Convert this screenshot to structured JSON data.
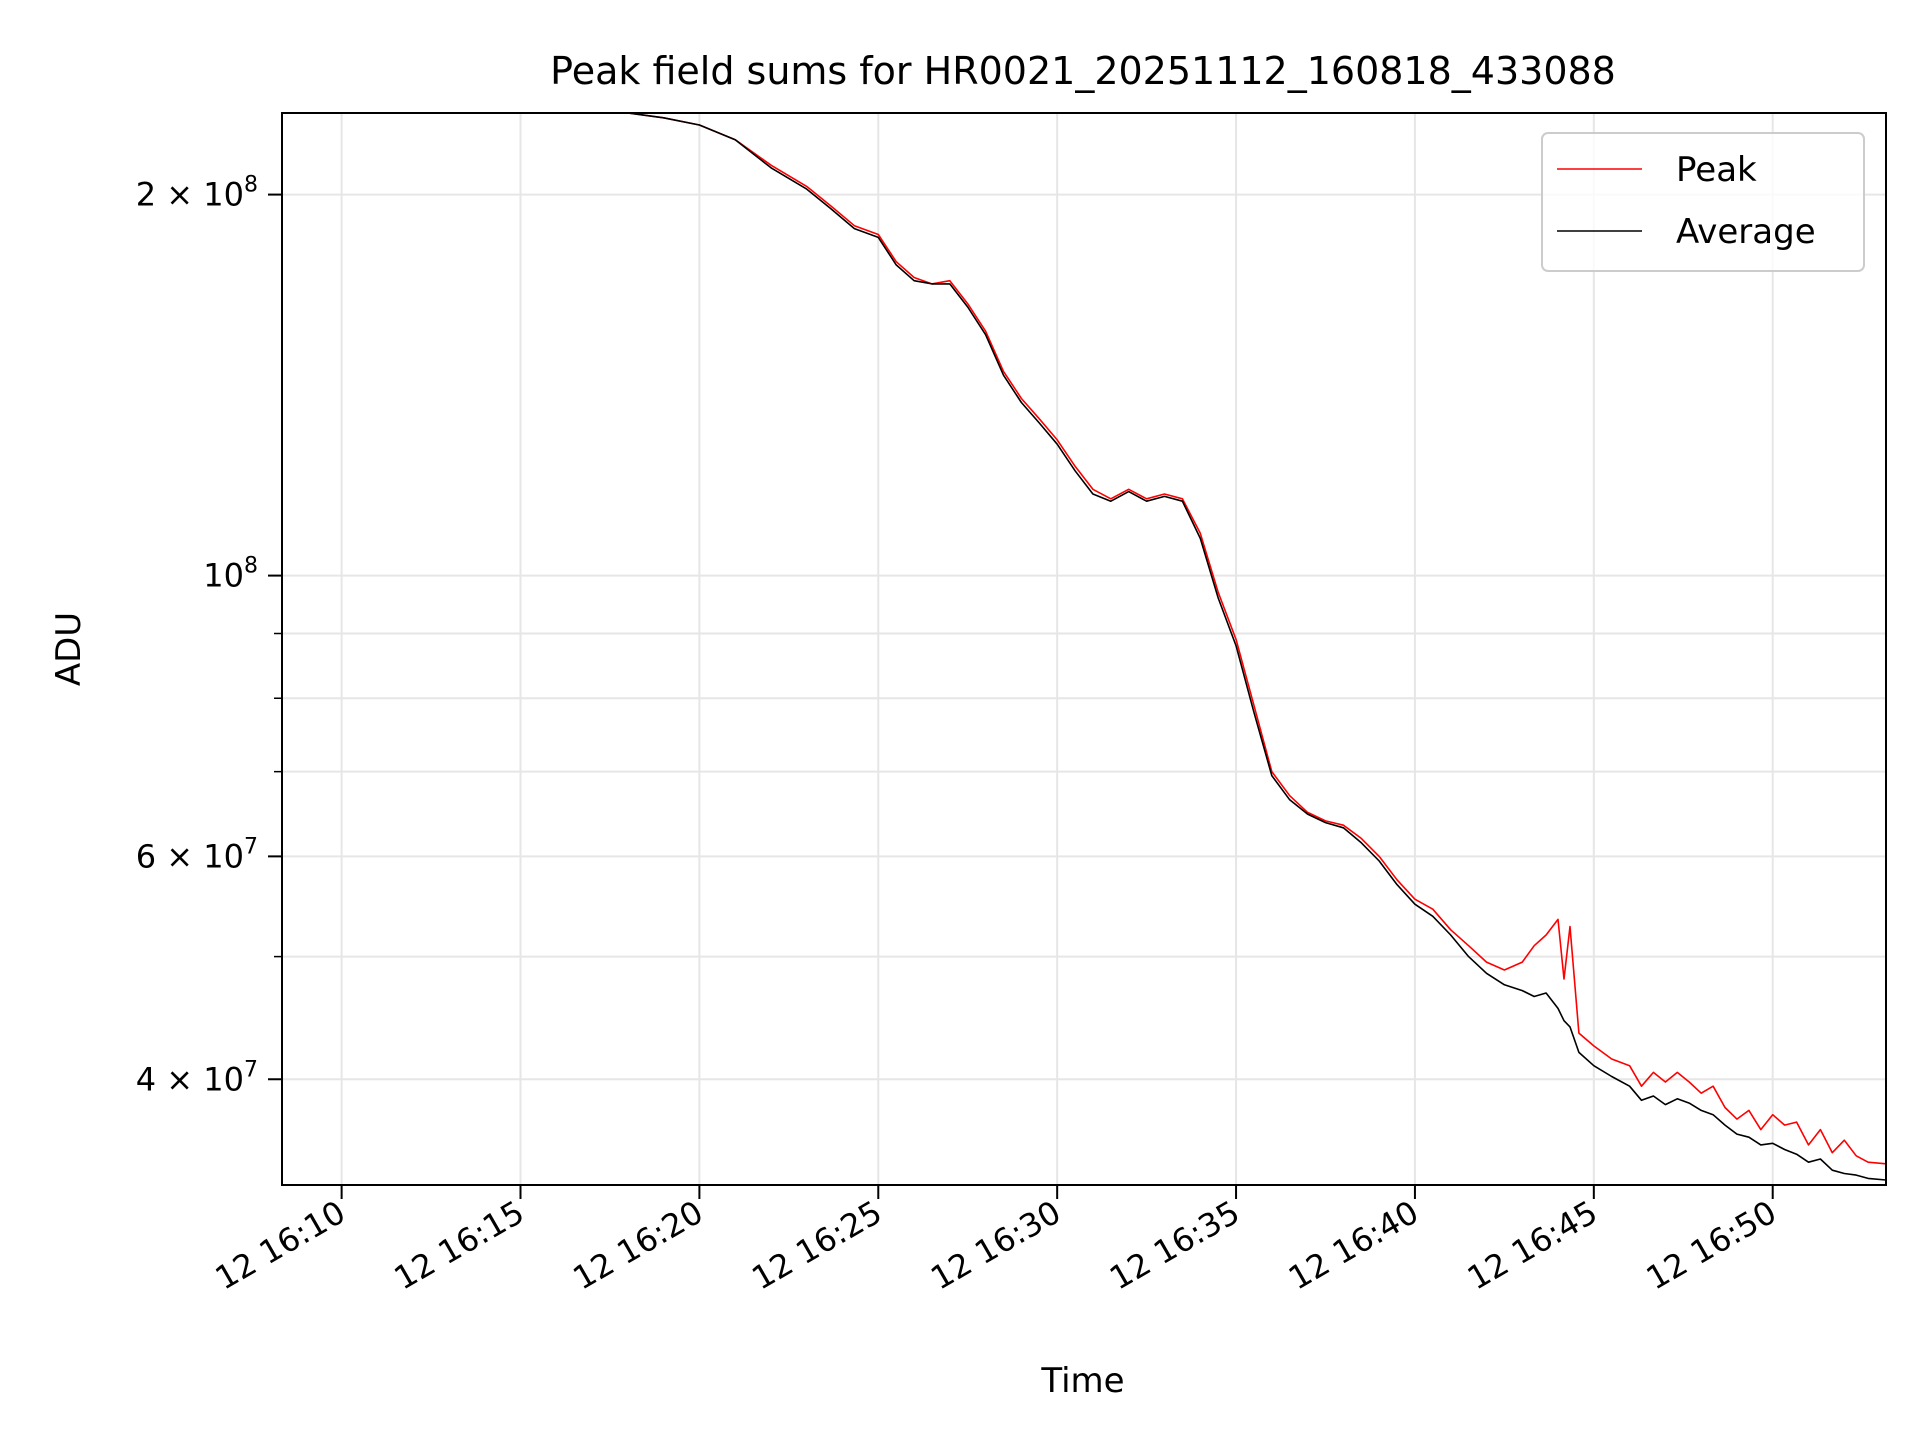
{
  "chart_data": {
    "type": "line",
    "title": "Peak field sums for HR0021_20251112_160818_433088",
    "xlabel": "Time",
    "ylabel": "ADU",
    "yscale": "log",
    "grid": true,
    "legend_position": "top-right",
    "xlim": [
      "12 16:08:20",
      "12 16:53:10"
    ],
    "ylim": [
      33000000,
      232000000
    ],
    "x_ticks": [
      "12 16:10",
      "12 16:15",
      "12 16:20",
      "12 16:25",
      "12 16:30",
      "12 16:35",
      "12 16:40",
      "12 16:45",
      "12 16:50"
    ],
    "x_tick_times": [
      "16:10",
      "16:15",
      "16:20",
      "16:25",
      "16:30",
      "16:35",
      "16:40",
      "16:45",
      "16:50"
    ],
    "y_ticks_major": [
      {
        "value": 200000000,
        "mantissa": "2",
        "exponent": "8"
      },
      {
        "value": 100000000,
        "mantissa": "",
        "exponent": "8"
      },
      {
        "value": 60000000,
        "mantissa": "6",
        "exponent": "7"
      },
      {
        "value": 40000000,
        "mantissa": "4",
        "exponent": "7"
      }
    ],
    "y_ticks_minor": [
      90000000,
      80000000,
      70000000,
      50000000
    ],
    "series": [
      {
        "name": "Peak",
        "color": "#ff0000",
        "points": [
          [
            "16:12:00",
            234000000
          ],
          [
            "16:18:00",
            232000000
          ],
          [
            "16:19:00",
            230000000
          ],
          [
            "16:20:00",
            227000000
          ],
          [
            "16:21:00",
            221000000
          ],
          [
            "16:22:00",
            211000000
          ],
          [
            "16:23:00",
            203000000
          ],
          [
            "16:23:40",
            196000000
          ],
          [
            "16:24:20",
            189000000
          ],
          [
            "16:25:00",
            186000000
          ],
          [
            "16:25:30",
            177000000
          ],
          [
            "16:26:00",
            172000000
          ],
          [
            "16:26:30",
            170000000
          ],
          [
            "16:27:00",
            171000000
          ],
          [
            "16:27:30",
            164000000
          ],
          [
            "16:28:00",
            156000000
          ],
          [
            "16:28:30",
            145000000
          ],
          [
            "16:29:00",
            138000000
          ],
          [
            "16:29:30",
            133000000
          ],
          [
            "16:30:00",
            128000000
          ],
          [
            "16:30:30",
            122000000
          ],
          [
            "16:31:00",
            117000000
          ],
          [
            "16:31:30",
            115000000
          ],
          [
            "16:32:00",
            117000000
          ],
          [
            "16:32:30",
            115000000
          ],
          [
            "16:33:00",
            116000000
          ],
          [
            "16:33:30",
            115000000
          ],
          [
            "16:34:00",
            108000000
          ],
          [
            "16:34:30",
            97000000
          ],
          [
            "16:35:00",
            89000000
          ],
          [
            "16:35:30",
            79000000
          ],
          [
            "16:36:00",
            70000000
          ],
          [
            "16:36:30",
            67000000
          ],
          [
            "16:37:00",
            65000000
          ],
          [
            "16:37:30",
            64000000
          ],
          [
            "16:38:00",
            63500000
          ],
          [
            "16:38:30",
            62000000
          ],
          [
            "16:39:00",
            60000000
          ],
          [
            "16:39:30",
            57500000
          ],
          [
            "16:40:00",
            55500000
          ],
          [
            "16:40:30",
            54500000
          ],
          [
            "16:41:00",
            52500000
          ],
          [
            "16:41:30",
            51000000
          ],
          [
            "16:42:00",
            49500000
          ],
          [
            "16:42:30",
            48800000
          ],
          [
            "16:43:00",
            49500000
          ],
          [
            "16:43:20",
            51000000
          ],
          [
            "16:43:40",
            52000000
          ],
          [
            "16:44:00",
            53500000
          ],
          [
            "16:44:10",
            48000000
          ],
          [
            "16:44:20",
            52800000
          ],
          [
            "16:44:35",
            43500000
          ],
          [
            "16:45:00",
            42500000
          ],
          [
            "16:45:30",
            41500000
          ],
          [
            "16:46:00",
            41000000
          ],
          [
            "16:46:20",
            39500000
          ],
          [
            "16:46:40",
            40500000
          ],
          [
            "16:47:00",
            39800000
          ],
          [
            "16:47:20",
            40500000
          ],
          [
            "16:47:40",
            39800000
          ],
          [
            "16:48:00",
            39000000
          ],
          [
            "16:48:20",
            39500000
          ],
          [
            "16:48:40",
            38000000
          ],
          [
            "16:49:00",
            37200000
          ],
          [
            "16:49:20",
            37800000
          ],
          [
            "16:49:40",
            36500000
          ],
          [
            "16:50:00",
            37500000
          ],
          [
            "16:50:20",
            36800000
          ],
          [
            "16:50:40",
            37000000
          ],
          [
            "16:51:00",
            35500000
          ],
          [
            "16:51:20",
            36500000
          ],
          [
            "16:51:40",
            35000000
          ],
          [
            "16:52:00",
            35800000
          ],
          [
            "16:52:20",
            34800000
          ],
          [
            "16:52:40",
            34400000
          ],
          [
            "16:53:10",
            34300000
          ]
        ]
      },
      {
        "name": "Average",
        "color": "#000000",
        "points": [
          [
            "16:12:00",
            234000000
          ],
          [
            "16:18:00",
            232000000
          ],
          [
            "16:19:00",
            230000000
          ],
          [
            "16:20:00",
            227000000
          ],
          [
            "16:21:00",
            221000000
          ],
          [
            "16:22:00",
            210000000
          ],
          [
            "16:23:00",
            202000000
          ],
          [
            "16:23:40",
            195000000
          ],
          [
            "16:24:20",
            188000000
          ],
          [
            "16:25:00",
            185000000
          ],
          [
            "16:25:30",
            176000000
          ],
          [
            "16:26:00",
            171000000
          ],
          [
            "16:26:30",
            170000000
          ],
          [
            "16:27:00",
            170000000
          ],
          [
            "16:27:30",
            163000000
          ],
          [
            "16:28:00",
            155000000
          ],
          [
            "16:28:30",
            144000000
          ],
          [
            "16:29:00",
            137000000
          ],
          [
            "16:29:30",
            132000000
          ],
          [
            "16:30:00",
            127000000
          ],
          [
            "16:30:30",
            121000000
          ],
          [
            "16:31:00",
            116000000
          ],
          [
            "16:31:30",
            114500000
          ],
          [
            "16:32:00",
            116500000
          ],
          [
            "16:32:30",
            114500000
          ],
          [
            "16:33:00",
            115500000
          ],
          [
            "16:33:30",
            114500000
          ],
          [
            "16:34:00",
            107000000
          ],
          [
            "16:34:30",
            96000000
          ],
          [
            "16:35:00",
            88000000
          ],
          [
            "16:35:30",
            78000000
          ],
          [
            "16:36:00",
            69500000
          ],
          [
            "16:36:30",
            66500000
          ],
          [
            "16:37:00",
            64800000
          ],
          [
            "16:37:30",
            63800000
          ],
          [
            "16:38:00",
            63200000
          ],
          [
            "16:38:30",
            61500000
          ],
          [
            "16:39:00",
            59500000
          ],
          [
            "16:39:30",
            57000000
          ],
          [
            "16:40:00",
            55000000
          ],
          [
            "16:40:30",
            53800000
          ],
          [
            "16:41:00",
            52000000
          ],
          [
            "16:41:30",
            50000000
          ],
          [
            "16:42:00",
            48500000
          ],
          [
            "16:42:30",
            47500000
          ],
          [
            "16:43:00",
            47000000
          ],
          [
            "16:43:20",
            46500000
          ],
          [
            "16:43:40",
            46800000
          ],
          [
            "16:44:00",
            45500000
          ],
          [
            "16:44:10",
            44500000
          ],
          [
            "16:44:20",
            44000000
          ],
          [
            "16:44:35",
            42000000
          ],
          [
            "16:45:00",
            41000000
          ],
          [
            "16:45:30",
            40200000
          ],
          [
            "16:46:00",
            39500000
          ],
          [
            "16:46:20",
            38500000
          ],
          [
            "16:46:40",
            38800000
          ],
          [
            "16:47:00",
            38200000
          ],
          [
            "16:47:20",
            38600000
          ],
          [
            "16:47:40",
            38300000
          ],
          [
            "16:48:00",
            37800000
          ],
          [
            "16:48:20",
            37500000
          ],
          [
            "16:48:40",
            36800000
          ],
          [
            "16:49:00",
            36200000
          ],
          [
            "16:49:20",
            36000000
          ],
          [
            "16:49:40",
            35500000
          ],
          [
            "16:50:00",
            35600000
          ],
          [
            "16:50:20",
            35200000
          ],
          [
            "16:50:40",
            34900000
          ],
          [
            "16:51:00",
            34400000
          ],
          [
            "16:51:20",
            34600000
          ],
          [
            "16:51:40",
            33900000
          ],
          [
            "16:52:00",
            33700000
          ],
          [
            "16:52:20",
            33600000
          ],
          [
            "16:52:40",
            33400000
          ],
          [
            "16:53:10",
            33300000
          ]
        ]
      }
    ]
  }
}
